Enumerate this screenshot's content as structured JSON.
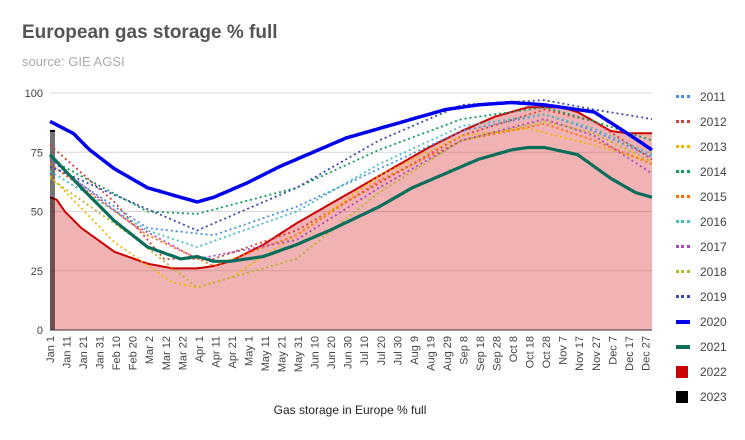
{
  "page": {
    "title": "European gas storage % full",
    "subtitle": "source: GIE AGSI"
  },
  "chart_data": {
    "type": "line",
    "title": "European gas storage % full",
    "subtitle": "source: GIE AGSI",
    "xlabel": "Gas storage in Europe % full",
    "ylabel": "",
    "ylim": [
      0,
      100
    ],
    "yticks": [
      "0",
      "25",
      "50",
      "75",
      "100"
    ],
    "x_day_range": [
      1,
      365
    ],
    "x_tick_labels": [
      "Jan 1",
      "Jan 11",
      "Jan 21",
      "Jan 31",
      "Feb 10",
      "Feb 20",
      "Mar 2",
      "Mar 12",
      "Mar 22",
      "Apr 1",
      "Apr 11",
      "Apr 21",
      "May 1",
      "May 11",
      "May 21",
      "May 31",
      "Jun 10",
      "Jun 20",
      "Jun 30",
      "Jul 10",
      "Jul 20",
      "Jul 30",
      "Aug 9",
      "Aug 19",
      "Aug 29",
      "Sep 8",
      "Sep 18",
      "Sep 28",
      "Oct 8",
      "Oct 18",
      "Oct 28",
      "Nov 7",
      "Nov 17",
      "Nov 27",
      "Dec 7",
      "Dec 17",
      "Dec 27"
    ],
    "series": [
      {
        "name": "2011",
        "color": "#4a90e2",
        "style": "dotted",
        "x": [
          1,
          60,
          100,
          150,
          200,
          250,
          300,
          330,
          365
        ],
        "y": [
          70,
          43,
          40,
          52,
          68,
          84,
          91,
          84,
          73
        ]
      },
      {
        "name": "2012",
        "color": "#d8403a",
        "style": "dotted",
        "x": [
          1,
          40,
          70,
          100,
          150,
          200,
          250,
          300,
          330,
          365
        ],
        "y": [
          78,
          54,
          30,
          30,
          42,
          62,
          82,
          93,
          88,
          72
        ]
      },
      {
        "name": "2013",
        "color": "#f4b400",
        "style": "dotted",
        "x": [
          1,
          40,
          75,
          90,
          110,
          150,
          200,
          250,
          290,
          330,
          365
        ],
        "y": [
          65,
          37,
          20,
          18,
          22,
          40,
          65,
          82,
          85,
          78,
          71
        ]
      },
      {
        "name": "2014",
        "color": "#0f9d58",
        "style": "dotted",
        "x": [
          1,
          60,
          90,
          150,
          200,
          250,
          300,
          330,
          365
        ],
        "y": [
          72,
          50,
          49,
          60,
          76,
          89,
          94,
          88,
          80
        ]
      },
      {
        "name": "2015",
        "color": "#ff6d01",
        "style": "dotted",
        "x": [
          1,
          60,
          100,
          150,
          200,
          250,
          300,
          330,
          365
        ],
        "y": [
          70,
          40,
          27,
          40,
          63,
          80,
          87,
          80,
          70
        ]
      },
      {
        "name": "2016",
        "color": "#46bdc6",
        "style": "dotted",
        "x": [
          1,
          60,
          90,
          150,
          200,
          250,
          300,
          330,
          365
        ],
        "y": [
          67,
          42,
          35,
          50,
          70,
          86,
          91,
          85,
          74
        ]
      },
      {
        "name": "2017",
        "color": "#ab47bc",
        "style": "dotted",
        "x": [
          1,
          50,
          90,
          150,
          200,
          250,
          300,
          330,
          365
        ],
        "y": [
          72,
          45,
          30,
          38,
          60,
          80,
          89,
          82,
          66
        ]
      },
      {
        "name": "2018",
        "color": "#b5b528",
        "style": "dotted",
        "x": [
          1,
          50,
          90,
          150,
          200,
          250,
          300,
          330,
          365
        ],
        "y": [
          64,
          40,
          18,
          30,
          58,
          80,
          88,
          83,
          71
        ]
      },
      {
        "name": "2019",
        "color": "#3949ab",
        "style": "dotted",
        "x": [
          1,
          40,
          90,
          150,
          200,
          250,
          300,
          330,
          365
        ],
        "y": [
          69,
          57,
          42,
          60,
          80,
          95,
          97,
          93,
          89
        ]
      },
      {
        "name": "2020",
        "color": "#0000ee",
        "style": "solid",
        "x": [
          1,
          15,
          25,
          40,
          60,
          80,
          90,
          100,
          120,
          140,
          160,
          180,
          200,
          220,
          240,
          260,
          280,
          300,
          330,
          350,
          365
        ],
        "y": [
          88,
          83,
          76,
          68,
          60,
          56,
          54,
          56,
          62,
          69,
          75,
          81,
          85,
          89,
          93,
          95,
          96,
          95,
          92,
          83,
          76
        ]
      },
      {
        "name": "2021",
        "color": "#0b6e5a",
        "style": "solid",
        "x": [
          1,
          20,
          40,
          60,
          80,
          90,
          100,
          110,
          130,
          150,
          170,
          200,
          220,
          240,
          260,
          280,
          290,
          300,
          320,
          330,
          340,
          355,
          365
        ],
        "y": [
          74,
          60,
          46,
          35,
          30,
          31,
          29,
          29,
          31,
          36,
          42,
          52,
          60,
          66,
          72,
          76,
          77,
          77,
          74,
          69,
          64,
          58,
          56
        ]
      },
      {
        "name": "2022",
        "color": "#cc0000",
        "style": "area",
        "x": [
          1,
          5,
          10,
          20,
          40,
          60,
          75,
          90,
          100,
          110,
          130,
          150,
          170,
          200,
          230,
          250,
          270,
          280,
          290,
          300,
          310,
          320,
          330,
          340,
          350,
          365
        ],
        "y": [
          56,
          55,
          50,
          43,
          33,
          28,
          26,
          26,
          27,
          29,
          36,
          45,
          53,
          65,
          77,
          84,
          90,
          92,
          94,
          94,
          94,
          92,
          88,
          84,
          83,
          83
        ]
      },
      {
        "name": "2023",
        "color": "#000000",
        "style": "area",
        "x": [
          1,
          4
        ],
        "y": [
          84,
          84
        ]
      }
    ]
  }
}
